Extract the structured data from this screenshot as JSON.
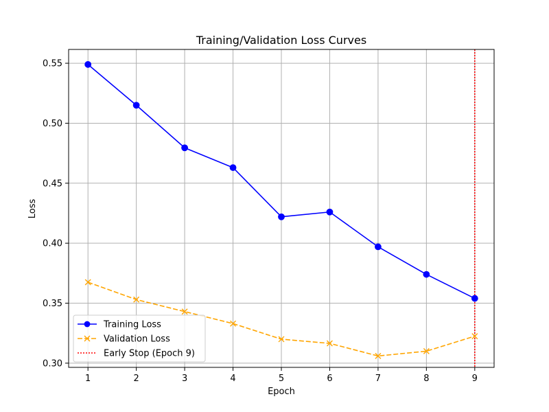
{
  "chart_data": {
    "type": "line",
    "title": "Training/Validation Loss Curves",
    "xlabel": "Epoch",
    "ylabel": "Loss",
    "x": [
      1,
      2,
      3,
      4,
      5,
      6,
      7,
      8,
      9
    ],
    "xlim": [
      0.6,
      9.4
    ],
    "ylim": [
      0.2965,
      0.5615
    ],
    "xticks": [
      1,
      2,
      3,
      4,
      5,
      6,
      7,
      8,
      9
    ],
    "xtick_labels": [
      "1",
      "2",
      "3",
      "4",
      "5",
      "6",
      "7",
      "8",
      "9"
    ],
    "yticks": [
      0.3,
      0.35,
      0.4,
      0.45,
      0.5,
      0.55
    ],
    "ytick_labels": [
      "0.30",
      "0.35",
      "0.40",
      "0.45",
      "0.50",
      "0.55"
    ],
    "grid": true,
    "legend_position": "lower-left",
    "series": [
      {
        "name": "Training Loss",
        "values": [
          0.549,
          0.515,
          0.4795,
          0.463,
          0.422,
          0.426,
          0.397,
          0.374,
          0.354
        ],
        "color": "#0000ff",
        "line_style": "solid",
        "marker": "circle"
      },
      {
        "name": "Validation Loss",
        "values": [
          0.3675,
          0.353,
          0.343,
          0.333,
          0.32,
          0.3165,
          0.306,
          0.31,
          0.3225
        ],
        "color": "#ffa500",
        "line_style": "dashed",
        "marker": "x"
      }
    ],
    "vlines": [
      {
        "name": "Early Stop (Epoch 9)",
        "x": 9,
        "color": "#ff0000",
        "line_style": "dotted"
      }
    ]
  }
}
